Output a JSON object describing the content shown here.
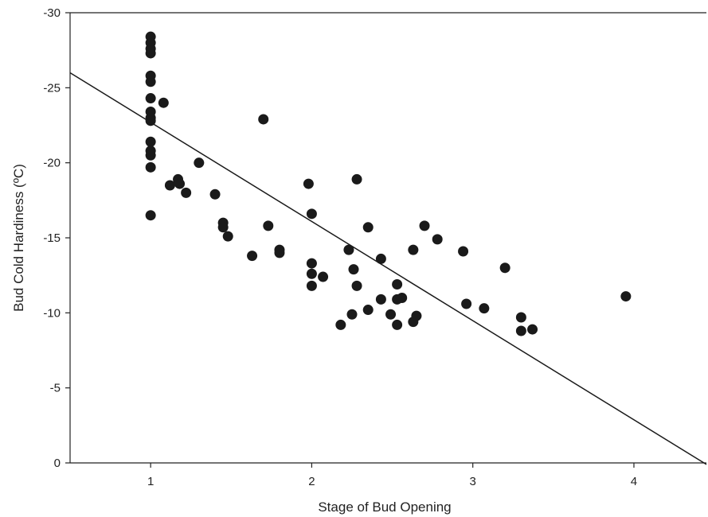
{
  "chart_data": {
    "type": "scatter",
    "title": "",
    "xlabel": "Stage of Bud Opening",
    "ylabel": "Bud Cold Hardiness (ºC)",
    "xlim": [
      0.5,
      4.45
    ],
    "ylim": [
      0,
      -30
    ],
    "y_inverted": true,
    "grid": false,
    "x_ticks": [
      1,
      2,
      3,
      4
    ],
    "y_ticks": [
      0,
      -5,
      -10,
      -15,
      -20,
      -25,
      -30
    ],
    "x_tick_labels": [
      "1",
      "2",
      "3",
      "4"
    ],
    "y_tick_labels": [
      "0",
      "-5",
      "-10",
      "-15",
      "-20",
      "-25",
      "-30"
    ],
    "marker_color": "#1a1a1a",
    "line_color": "#1a1a1a",
    "points": [
      {
        "x": 1.0,
        "y": -28.4
      },
      {
        "x": 1.0,
        "y": -28.0
      },
      {
        "x": 1.0,
        "y": -27.6
      },
      {
        "x": 1.0,
        "y": -27.3
      },
      {
        "x": 1.0,
        "y": -25.8
      },
      {
        "x": 1.0,
        "y": -25.4
      },
      {
        "x": 1.0,
        "y": -24.3
      },
      {
        "x": 1.0,
        "y": -23.4
      },
      {
        "x": 1.0,
        "y": -23.0
      },
      {
        "x": 1.0,
        "y": -22.8
      },
      {
        "x": 1.0,
        "y": -21.4
      },
      {
        "x": 1.0,
        "y": -20.8
      },
      {
        "x": 1.0,
        "y": -20.5
      },
      {
        "x": 1.0,
        "y": -19.7
      },
      {
        "x": 1.0,
        "y": -16.5
      },
      {
        "x": 1.08,
        "y": -24.0
      },
      {
        "x": 1.12,
        "y": -18.5
      },
      {
        "x": 1.17,
        "y": -18.9
      },
      {
        "x": 1.18,
        "y": -18.6
      },
      {
        "x": 1.22,
        "y": -18.0
      },
      {
        "x": 1.3,
        "y": -20.0
      },
      {
        "x": 1.4,
        "y": -17.9
      },
      {
        "x": 1.45,
        "y": -16.0
      },
      {
        "x": 1.45,
        "y": -15.7
      },
      {
        "x": 1.48,
        "y": -15.1
      },
      {
        "x": 1.63,
        "y": -13.8
      },
      {
        "x": 1.7,
        "y": -22.9
      },
      {
        "x": 1.73,
        "y": -15.8
      },
      {
        "x": 1.8,
        "y": -14.2
      },
      {
        "x": 1.8,
        "y": -14.0
      },
      {
        "x": 1.98,
        "y": -18.6
      },
      {
        "x": 2.0,
        "y": -16.6
      },
      {
        "x": 2.0,
        "y": -13.3
      },
      {
        "x": 2.0,
        "y": -12.6
      },
      {
        "x": 2.0,
        "y": -11.8
      },
      {
        "x": 2.07,
        "y": -12.4
      },
      {
        "x": 2.18,
        "y": -9.2
      },
      {
        "x": 2.23,
        "y": -14.2
      },
      {
        "x": 2.25,
        "y": -9.9
      },
      {
        "x": 2.26,
        "y": -12.9
      },
      {
        "x": 2.28,
        "y": -11.8
      },
      {
        "x": 2.28,
        "y": -18.9
      },
      {
        "x": 2.35,
        "y": -15.7
      },
      {
        "x": 2.35,
        "y": -10.2
      },
      {
        "x": 2.43,
        "y": -13.6
      },
      {
        "x": 2.43,
        "y": -10.9
      },
      {
        "x": 2.49,
        "y": -9.9
      },
      {
        "x": 2.53,
        "y": -11.9
      },
      {
        "x": 2.53,
        "y": -10.9
      },
      {
        "x": 2.53,
        "y": -9.2
      },
      {
        "x": 2.56,
        "y": -11.0
      },
      {
        "x": 2.63,
        "y": -14.2
      },
      {
        "x": 2.63,
        "y": -9.4
      },
      {
        "x": 2.65,
        "y": -9.8
      },
      {
        "x": 2.7,
        "y": -15.8
      },
      {
        "x": 2.78,
        "y": -14.9
      },
      {
        "x": 2.94,
        "y": -14.1
      },
      {
        "x": 2.96,
        "y": -10.6
      },
      {
        "x": 3.07,
        "y": -10.3
      },
      {
        "x": 3.2,
        "y": -13.0
      },
      {
        "x": 3.3,
        "y": -9.7
      },
      {
        "x": 3.3,
        "y": -8.8
      },
      {
        "x": 3.37,
        "y": -8.9
      },
      {
        "x": 3.95,
        "y": -11.1
      }
    ],
    "regression": {
      "x": [
        0.5,
        4.45
      ],
      "y": [
        -26.0,
        0.1
      ]
    }
  }
}
